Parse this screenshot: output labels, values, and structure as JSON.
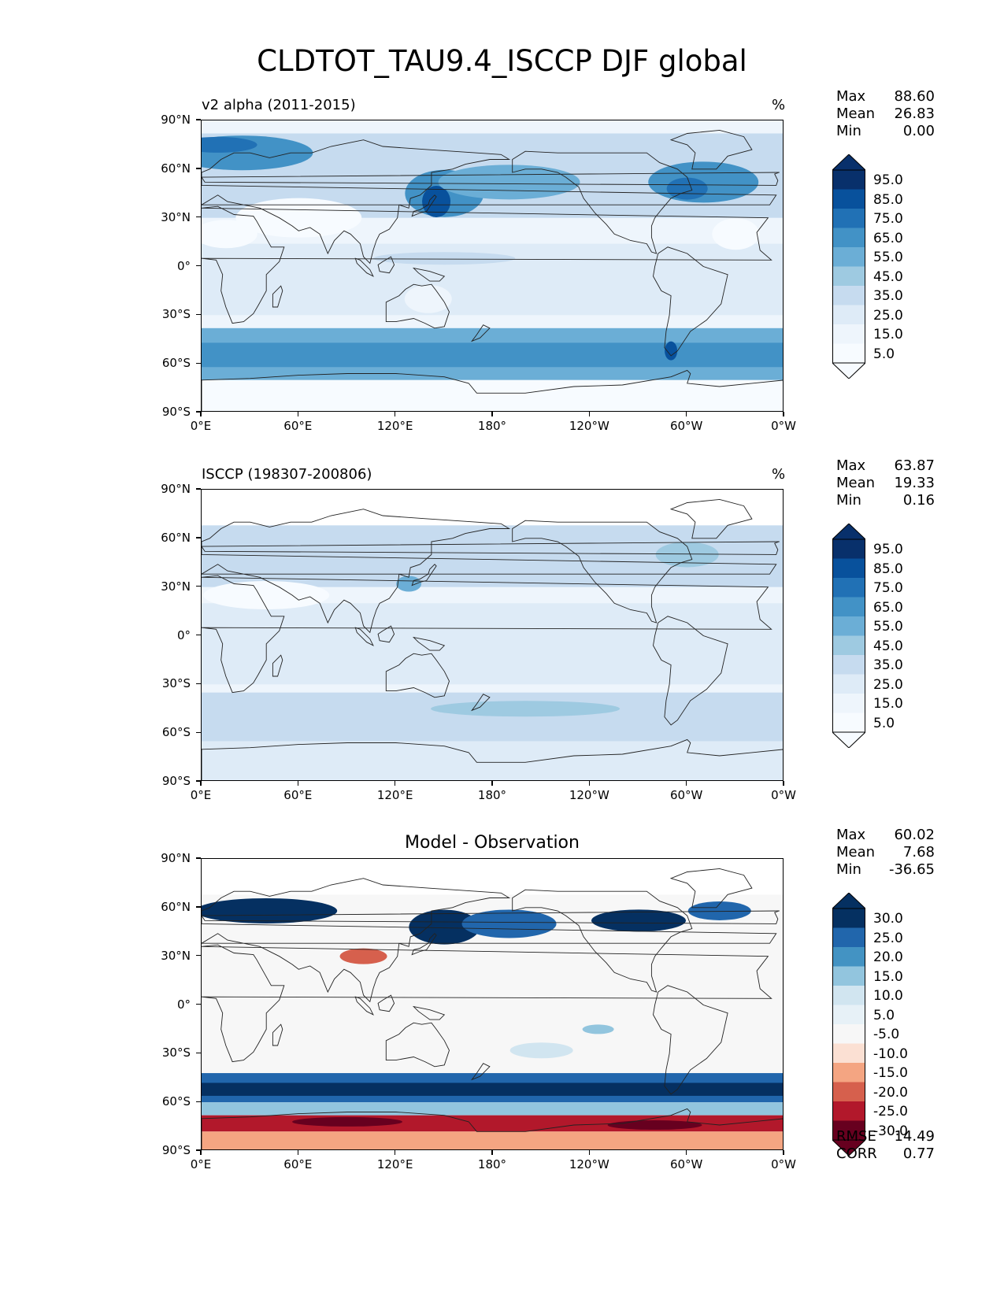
{
  "title": "CLDTOT_TAU9.4_ISCCP DJF global",
  "lat_ticks": [
    "90°N",
    "60°N",
    "30°N",
    "0°",
    "30°S",
    "60°S",
    "90°S"
  ],
  "lon_ticks": [
    "0°E",
    "60°E",
    "120°E",
    "180°",
    "120°W",
    "60°W",
    "0°W"
  ],
  "panels": [
    {
      "id": "test",
      "left_label": "v2 alpha (2011-2015)",
      "right_label": "%",
      "center_title": "",
      "stats": [
        {
          "label": "Max",
          "value": "88.60"
        },
        {
          "label": "Mean",
          "value": "26.83"
        },
        {
          "label": "Min",
          "value": "0.00"
        }
      ],
      "colorbar_labels": [
        "95.0",
        "85.0",
        "75.0",
        "65.0",
        "55.0",
        "45.0",
        "35.0",
        "25.0",
        "15.0",
        "5.0"
      ],
      "colorbar_colors": [
        "#08306b",
        "#08519c",
        "#2171b5",
        "#4292c6",
        "#6baed6",
        "#9ecae1",
        "#c6dbef",
        "#deebf7",
        "#eef5fc",
        "#f7fbff"
      ],
      "extra_stats": []
    },
    {
      "id": "ref",
      "left_label": "ISCCP (198307-200806)",
      "right_label": "%",
      "center_title": "",
      "stats": [
        {
          "label": "Max",
          "value": "63.87"
        },
        {
          "label": "Mean",
          "value": "19.33"
        },
        {
          "label": "Min",
          "value": "0.16"
        }
      ],
      "colorbar_labels": [
        "95.0",
        "85.0",
        "75.0",
        "65.0",
        "55.0",
        "45.0",
        "35.0",
        "25.0",
        "15.0",
        "5.0"
      ],
      "colorbar_colors": [
        "#08306b",
        "#08519c",
        "#2171b5",
        "#4292c6",
        "#6baed6",
        "#9ecae1",
        "#c6dbef",
        "#deebf7",
        "#eef5fc",
        "#f7fbff"
      ],
      "extra_stats": []
    },
    {
      "id": "diff",
      "left_label": "",
      "right_label": "",
      "center_title": "Model - Observation",
      "stats": [
        {
          "label": "Max",
          "value": "60.02"
        },
        {
          "label": "Mean",
          "value": "7.68"
        },
        {
          "label": "Min",
          "value": "-36.65"
        }
      ],
      "colorbar_labels": [
        "30.0",
        "25.0",
        "20.0",
        "15.0",
        "10.0",
        "5.0",
        "-5.0",
        "-10.0",
        "-15.0",
        "-20.0",
        "-25.0",
        "-30.0"
      ],
      "colorbar_colors": [
        "#053061",
        "#2166ac",
        "#4393c3",
        "#92c5de",
        "#d1e5f0",
        "#e7f1f7",
        "#f7f7f7",
        "#fbe0d3",
        "#f4a582",
        "#d6604d",
        "#b2182b",
        "#67001f"
      ],
      "extra_stats": [
        {
          "label": "RMSE",
          "value": "14.49"
        },
        {
          "label": "CORR",
          "value": "0.77"
        }
      ]
    }
  ]
}
